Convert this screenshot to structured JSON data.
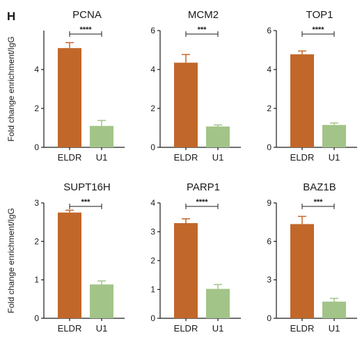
{
  "panel_label": "H",
  "colors": {
    "ELDR": "#c2672a",
    "U1": "#a3c488",
    "axis": "#1a1a1a"
  },
  "chart_data": [
    {
      "type": "bar",
      "title": "PCNA",
      "categories": [
        "ELDR",
        "U1"
      ],
      "values": [
        5.1,
        1.1
      ],
      "errors": [
        0.28,
        0.28
      ],
      "ylim": [
        0,
        6
      ],
      "yticks": [
        0,
        2,
        4
      ],
      "significance": "****",
      "ylabel": "Fold change enrichment/IgG",
      "xlabel": ""
    },
    {
      "type": "bar",
      "title": "MCM2",
      "categories": [
        "ELDR",
        "U1"
      ],
      "values": [
        4.35,
        1.07
      ],
      "errors": [
        0.42,
        0.08
      ],
      "ylim": [
        0,
        6
      ],
      "yticks": [
        0,
        2,
        4,
        6
      ],
      "significance": "***",
      "ylabel": "",
      "xlabel": ""
    },
    {
      "type": "bar",
      "title": "TOP1",
      "categories": [
        "ELDR",
        "U1"
      ],
      "values": [
        4.78,
        1.15
      ],
      "errors": [
        0.17,
        0.1
      ],
      "ylim": [
        0,
        6
      ],
      "yticks": [
        0,
        2,
        4,
        6
      ],
      "significance": "****",
      "ylabel": "",
      "xlabel": ""
    },
    {
      "type": "bar",
      "title": "SUPT16H",
      "categories": [
        "ELDR",
        "U1"
      ],
      "values": [
        2.75,
        0.88
      ],
      "errors": [
        0.06,
        0.09
      ],
      "ylim": [
        0,
        3
      ],
      "yticks": [
        0,
        1,
        2,
        3
      ],
      "significance": "***",
      "ylabel": "Fold change enrichment/IgG",
      "xlabel": ""
    },
    {
      "type": "bar",
      "title": "PARP1",
      "categories": [
        "ELDR",
        "U1"
      ],
      "values": [
        3.3,
        1.02
      ],
      "errors": [
        0.15,
        0.15
      ],
      "ylim": [
        0,
        4
      ],
      "yticks": [
        0,
        1,
        2,
        3,
        4
      ],
      "significance": "****",
      "ylabel": "",
      "xlabel": ""
    },
    {
      "type": "bar",
      "title": "BAZ1B",
      "categories": [
        "ELDR",
        "U1"
      ],
      "values": [
        7.35,
        1.3
      ],
      "errors": [
        0.6,
        0.25
      ],
      "ylim": [
        0,
        9
      ],
      "yticks": [
        0,
        3,
        6,
        9
      ],
      "significance": "***",
      "ylabel": "",
      "xlabel": ""
    }
  ]
}
